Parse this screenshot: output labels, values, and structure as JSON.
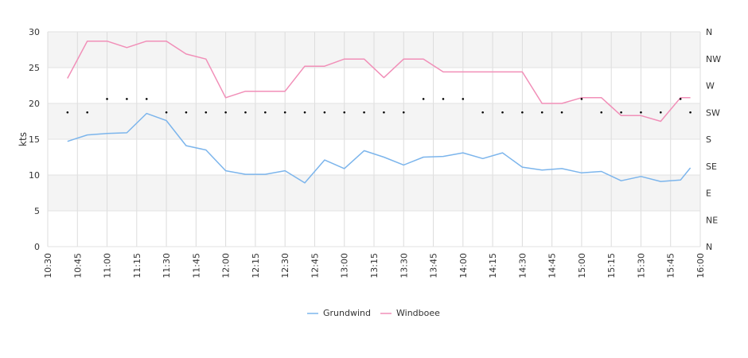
{
  "chart_data": {
    "type": "line",
    "x": [
      "10:40",
      "10:50",
      "11:00",
      "11:10",
      "11:20",
      "11:30",
      "11:40",
      "11:50",
      "12:00",
      "12:10",
      "12:20",
      "12:30",
      "12:40",
      "12:50",
      "13:00",
      "13:10",
      "13:20",
      "13:30",
      "13:40",
      "13:50",
      "14:00",
      "14:10",
      "14:20",
      "14:30",
      "14:40",
      "14:50",
      "15:00",
      "15:10",
      "15:20",
      "15:30",
      "15:40",
      "15:50",
      "15:55"
    ],
    "xlim": [
      "10:30",
      "16:00"
    ],
    "x_ticks": [
      "10:30",
      "10:45",
      "11:00",
      "11:15",
      "11:30",
      "11:45",
      "12:00",
      "12:15",
      "12:30",
      "12:45",
      "13:00",
      "13:15",
      "13:30",
      "13:45",
      "14:00",
      "14:15",
      "14:30",
      "14:45",
      "15:00",
      "15:15",
      "15:30",
      "15:45",
      "16:00"
    ],
    "ylabel": "kts",
    "ylim": [
      0,
      30
    ],
    "y_ticks": [
      0,
      5,
      10,
      15,
      20,
      25,
      30
    ],
    "y2_ticks": [
      "N",
      "NE",
      "E",
      "SE",
      "S",
      "SW",
      "W",
      "NW",
      "N"
    ],
    "series": [
      {
        "name": "Grundwind",
        "color": "#7cb5ec",
        "values": [
          14.7,
          15.6,
          15.8,
          15.9,
          18.6,
          17.6,
          14.1,
          13.5,
          10.6,
          10.1,
          10.1,
          10.6,
          8.9,
          12.1,
          10.9,
          13.4,
          12.5,
          11.4,
          12.5,
          12.6,
          13.1,
          12.3,
          13.1,
          11.1,
          10.7,
          10.9,
          10.3,
          10.5,
          9.2,
          9.8,
          9.1,
          9.3,
          11.0
        ]
      },
      {
        "name": "Windboee",
        "color": "#f18fb8",
        "values": [
          23.5,
          28.7,
          28.7,
          27.8,
          28.7,
          28.7,
          26.9,
          26.2,
          20.8,
          21.7,
          21.7,
          21.7,
          25.2,
          25.2,
          26.2,
          26.2,
          23.6,
          26.2,
          26.2,
          24.4,
          24.4,
          24.4,
          24.4,
          24.4,
          20.0,
          20.0,
          20.8,
          20.8,
          18.3,
          18.3,
          17.5,
          20.8,
          20.8
        ]
      }
    ],
    "direction_deg": [
      225,
      225,
      247.5,
      247.5,
      247.5,
      225,
      225,
      225,
      225,
      225,
      225,
      225,
      225,
      225,
      225,
      225,
      225,
      225,
      247.5,
      247.5,
      247.5,
      225,
      225,
      225,
      225,
      225,
      247.5,
      225,
      225,
      225,
      225,
      247.5,
      225
    ],
    "grid": true,
    "legend": "bottom-center"
  }
}
